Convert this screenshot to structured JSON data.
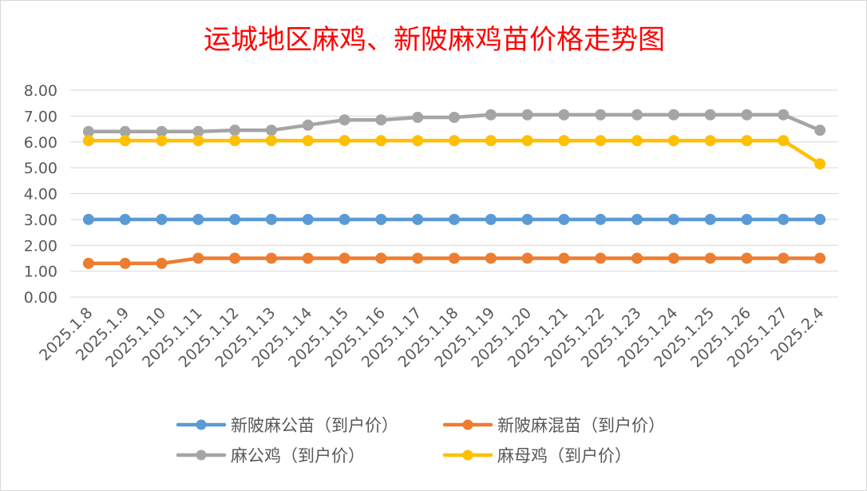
{
  "chart_data": {
    "type": "line",
    "title": "运城地区麻鸡、新陂麻鸡苗价格走势图",
    "xlabel": "",
    "ylabel": "",
    "ylim": [
      0,
      8
    ],
    "yticks": [
      "0.00",
      "1.00",
      "2.00",
      "3.00",
      "4.00",
      "5.00",
      "6.00",
      "7.00",
      "8.00"
    ],
    "grid": true,
    "legend_position": "bottom",
    "categories": [
      "2025.1.8",
      "2025.1.9",
      "2025.1.10",
      "2025.1.11",
      "2025.1.12",
      "2025.1.13",
      "2025.1.14",
      "2025.1.15",
      "2025.1.16",
      "2025.1.17",
      "2025.1.18",
      "2025.1.19",
      "2025.1.20",
      "2025.1.21",
      "2025.1.22",
      "2025.1.23",
      "2025.1.24",
      "2025.1.25",
      "2025.1.26",
      "2025.1.27",
      "2025.2.4"
    ],
    "series": [
      {
        "name": "新陂麻公苗（到户价）",
        "color": "#5b9bd5",
        "values": [
          3.0,
          3.0,
          3.0,
          3.0,
          3.0,
          3.0,
          3.0,
          3.0,
          3.0,
          3.0,
          3.0,
          3.0,
          3.0,
          3.0,
          3.0,
          3.0,
          3.0,
          3.0,
          3.0,
          3.0,
          3.0
        ]
      },
      {
        "name": "新陂麻混苗（到户价）",
        "color": "#ed7d31",
        "values": [
          1.3,
          1.3,
          1.3,
          1.5,
          1.5,
          1.5,
          1.5,
          1.5,
          1.5,
          1.5,
          1.5,
          1.5,
          1.5,
          1.5,
          1.5,
          1.5,
          1.5,
          1.5,
          1.5,
          1.5,
          1.5
        ]
      },
      {
        "name": "麻公鸡（到户价）",
        "color": "#a5a5a5",
        "values": [
          6.4,
          6.4,
          6.4,
          6.4,
          6.45,
          6.45,
          6.65,
          6.85,
          6.85,
          6.95,
          6.95,
          7.05,
          7.05,
          7.05,
          7.05,
          7.05,
          7.05,
          7.05,
          7.05,
          7.05,
          6.45
        ]
      },
      {
        "name": "麻母鸡（到户价）",
        "color": "#ffc000",
        "values": [
          6.05,
          6.05,
          6.05,
          6.05,
          6.05,
          6.05,
          6.05,
          6.05,
          6.05,
          6.05,
          6.05,
          6.05,
          6.05,
          6.05,
          6.05,
          6.05,
          6.05,
          6.05,
          6.05,
          6.05,
          5.15
        ]
      }
    ]
  }
}
